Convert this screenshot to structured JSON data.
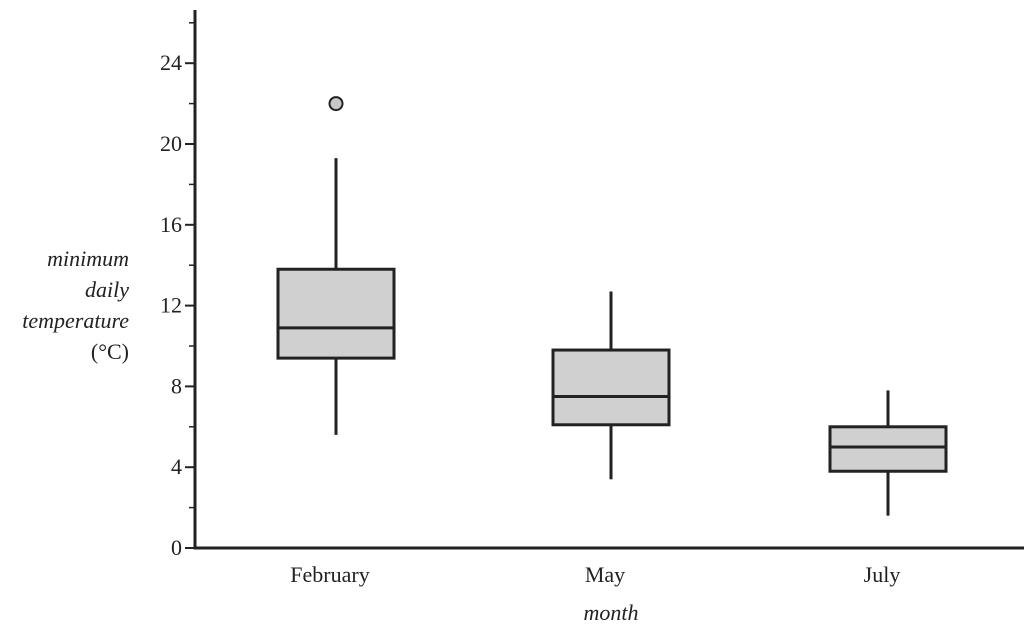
{
  "chart_data": {
    "type": "box",
    "title": "",
    "xlabel": "month",
    "ylabel_lines": [
      "minimum",
      "daily",
      "temperature"
    ],
    "ylabel_unit": "(°C)",
    "categories": [
      "February",
      "May",
      "July"
    ],
    "ylim": [
      0,
      27
    ],
    "y_ticks_labeled": [
      "0",
      "4",
      "8",
      "12",
      "16",
      "20",
      "24"
    ],
    "y_ticks_labeled_values": [
      0,
      4,
      8,
      12,
      16,
      20,
      24
    ],
    "y_minor_ticks": [
      2,
      6,
      10,
      14,
      18,
      22,
      26
    ],
    "boxes": [
      {
        "category": "February",
        "min": 5.6,
        "q1": 9.4,
        "median": 10.9,
        "q3": 13.8,
        "max": 19.3,
        "outliers": [
          22
        ]
      },
      {
        "category": "May",
        "min": 3.4,
        "q1": 6.1,
        "median": 7.5,
        "q3": 9.8,
        "max": 12.7,
        "outliers": []
      },
      {
        "category": "July",
        "min": 1.6,
        "q1": 3.8,
        "median": 5.0,
        "q3": 6.0,
        "max": 7.8,
        "outliers": []
      }
    ],
    "grid": false,
    "legend": "none",
    "colors": {
      "box_fill": "#d0d0d0",
      "stroke": "#222222",
      "outlier_fill": "#c8c8c8"
    }
  }
}
